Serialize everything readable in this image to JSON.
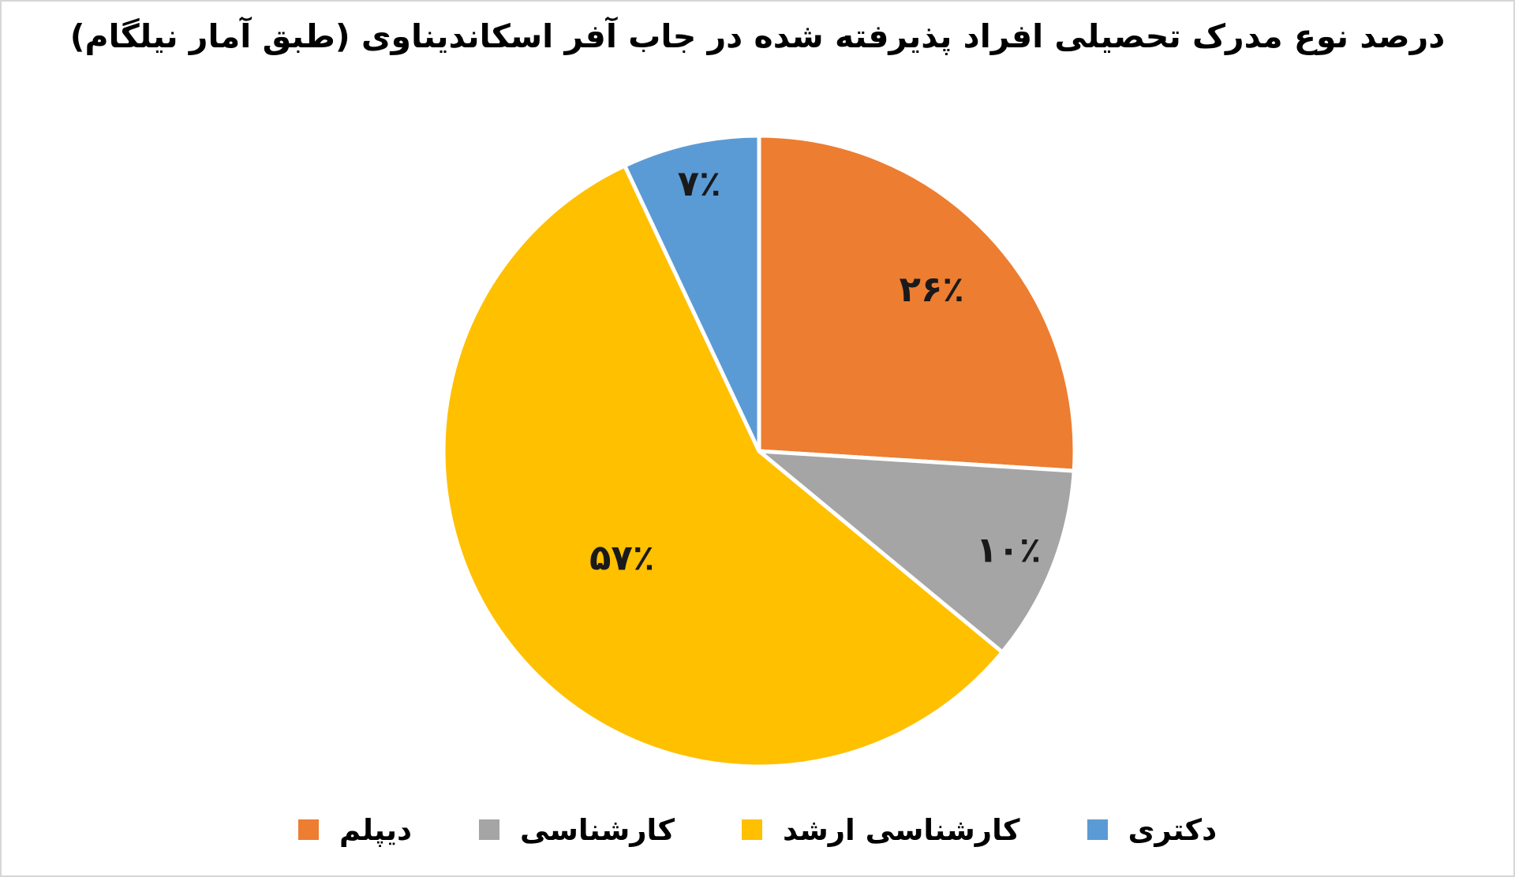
{
  "frame": {
    "background_color": "#FFFFFF",
    "border_color": "#D6D6D6"
  },
  "chart_data": {
    "type": "pie",
    "title": "درصد نوع مدرک تحصیلی افراد پذیرفته شده در جاب آفر اسکاندیناوی (طبق آمار نیلگام)",
    "categories": [
      "دیپلم",
      "کارشناسی",
      "کارشناسی ارشد",
      "دکتری"
    ],
    "values": [
      26,
      10,
      57,
      7
    ],
    "data_labels": [
      "۲۶٪",
      "۱۰٪",
      "۵۷٪",
      "۷٪"
    ],
    "colors": [
      "#ED7D31",
      "#A5A5A5",
      "#FFC000",
      "#5B9BD5"
    ],
    "slice_border_color": "#FFFFFF",
    "label_color": "#1A1A1A",
    "title_color": "#000000",
    "start_angle_deg": 0,
    "direction": "clockwise",
    "legend_position": "bottom",
    "label_radius": [
      0.75,
      0.85,
      0.55,
      0.87
    ]
  }
}
